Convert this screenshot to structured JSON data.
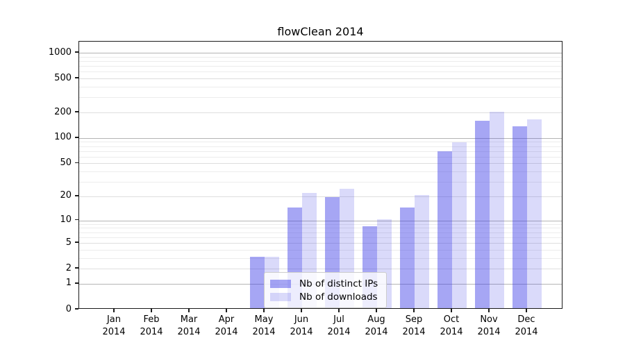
{
  "title": "flowClean 2014",
  "legend": {
    "items": [
      {
        "label": "Nb of distinct IPs",
        "color_hex": "#a5a5f3",
        "color_rgba": "rgba(60,60,230,0.46)"
      },
      {
        "label": "Nb of downloads",
        "color_hex": "#dbdbf9",
        "color_rgba": "rgba(60,60,230,0.19)"
      }
    ]
  },
  "chart_data": {
    "type": "bar",
    "title": "flowClean 2014",
    "categories": [
      "Jan",
      "Feb",
      "Mar",
      "Apr",
      "May",
      "Jun",
      "Jul",
      "Aug",
      "Sep",
      "Oct",
      "Nov",
      "Dec"
    ],
    "year_label": "2014",
    "series": [
      {
        "name": "Nb of distinct IPs",
        "color": "rgba(60,60,230,0.46)",
        "values": [
          0,
          0,
          0,
          0,
          3,
          14,
          19,
          8,
          14,
          67,
          155,
          132
        ]
      },
      {
        "name": "Nb of downloads",
        "color": "rgba(60,60,230,0.19)",
        "values": [
          0,
          0,
          0,
          0,
          3,
          21,
          24,
          10,
          20,
          85,
          195,
          160
        ]
      }
    ],
    "xlabel": "",
    "ylabel": "",
    "y_ticks": [
      0,
      1,
      2,
      5,
      10,
      20,
      50,
      100,
      200,
      500,
      1000
    ],
    "yscale": "log1p",
    "ylim": [
      0,
      1350
    ],
    "grid": true,
    "legend_position": "inside-bottom-center"
  }
}
